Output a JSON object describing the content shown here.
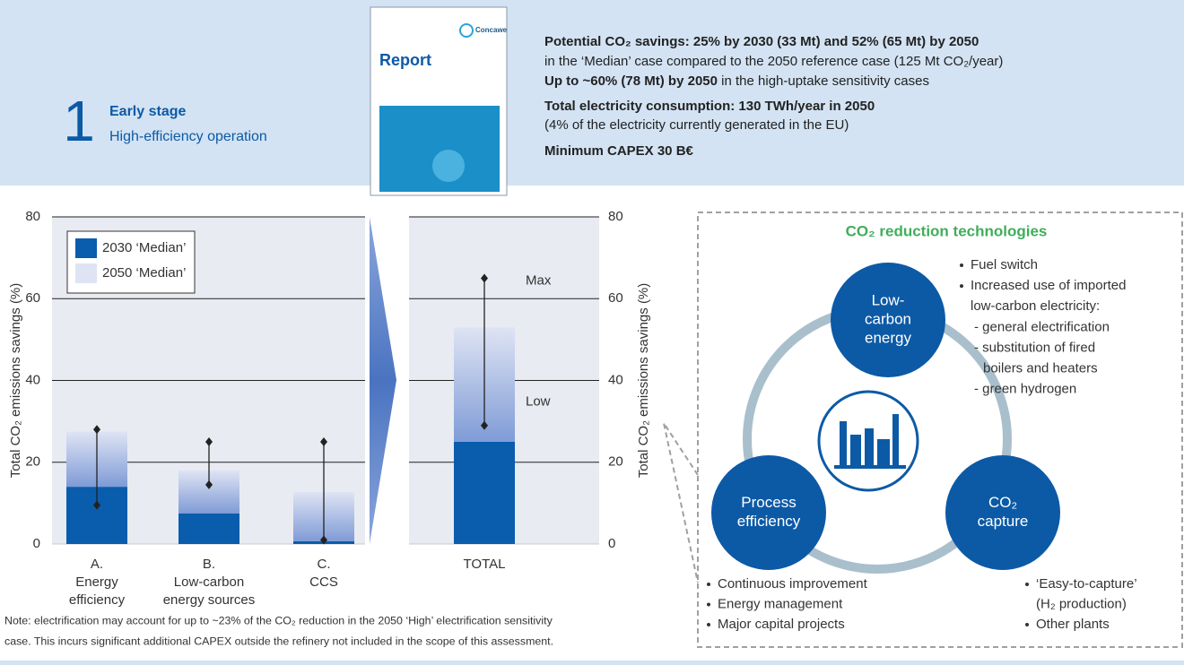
{
  "header": {
    "number": "1",
    "stage": "Early stage",
    "title": "High-efficiency operation",
    "report_brand": "Concawe",
    "report_title": "Report",
    "lines": [
      [
        {
          "text": "Potential CO₂ savings: 25% by 2030 (33 Mt) and 52% (65 Mt) by 2050",
          "bold": true
        }
      ],
      [
        {
          "text": "in the ‘Median’ case compared to the 2050 reference case (125 Mt CO₂/year)",
          "bold": false
        }
      ],
      [
        {
          "text": "Up to ~60% (78 Mt) by 2050",
          "bold": true
        },
        {
          "text": " in the high-uptake sensitivity cases",
          "bold": false
        }
      ],
      [
        {
          "text": "Total electricity consumption: 130 TWh/year in 2050",
          "bold": true
        }
      ],
      [
        {
          "text": "(4% of the electricity currently generated in the EU)",
          "bold": false
        }
      ],
      [
        {
          "text": "Minimum CAPEX 30 B€",
          "bold": true
        }
      ]
    ]
  },
  "chart_data": [
    {
      "type": "bar",
      "stacked": true,
      "categories": [
        [
          "A.",
          "Energy",
          "efficiency"
        ],
        [
          "B.",
          "Low-carbon",
          "energy sources"
        ],
        [
          "C.",
          "CCS"
        ]
      ],
      "series": [
        {
          "name": "2030 ‘Median’",
          "color": "#0a5cad",
          "values": [
            14,
            7.5,
            0.7
          ]
        },
        {
          "name": "2050 ‘Median’",
          "color": "#dfe4f4",
          "values": [
            13.5,
            10.5,
            12
          ]
        }
      ],
      "range": {
        "low": [
          9.5,
          14.5,
          1
        ],
        "high": [
          28,
          25,
          25
        ]
      },
      "ylabel": "Total CO₂ emissions savings (%)",
      "ylim": [
        0,
        80
      ],
      "yticks": [
        0,
        20,
        40,
        60,
        80
      ],
      "grid": true,
      "legend": "upper left"
    },
    {
      "type": "bar",
      "stacked": true,
      "categories": [
        [
          "TOTAL"
        ]
      ],
      "series": [
        {
          "color": "#0a5cad",
          "values": [
            25
          ]
        },
        {
          "color": "#dfe4f4",
          "values": [
            28
          ]
        }
      ],
      "range": {
        "low": [
          29
        ],
        "high": [
          65
        ]
      },
      "range_labels": {
        "low": "Low",
        "high": "Max"
      },
      "ylabel": "Total CO₂ emissions savings (%)",
      "ylim": [
        0,
        80
      ],
      "yticks": [
        0,
        20,
        40,
        60,
        80
      ],
      "grid": true
    }
  ],
  "diagram": {
    "title": "CO₂ reduction technologies",
    "nodes": [
      {
        "label": [
          "Low-",
          "carbon",
          "energy"
        ]
      },
      {
        "label": [
          "Process",
          "efficiency"
        ]
      },
      {
        "label": [
          "CO₂",
          "capture"
        ]
      }
    ],
    "bullets": [
      [
        [
          "Fuel switch"
        ],
        [
          "Increased use of imported",
          "low-carbon electricity:",
          "- general electrification",
          "- substitution of fired",
          "boilers and heaters",
          "- green hydrogen"
        ]
      ],
      [
        [
          "Continuous improvement"
        ],
        [
          "Energy management"
        ],
        [
          "Major capital projects"
        ]
      ],
      [
        [
          "‘Easy-to-capture’",
          "(H₂ production)"
        ],
        [
          "Other plants"
        ]
      ]
    ]
  },
  "note": [
    "Note: electrification may account for up to ~23% of the CO₂ reduction in the 2050 ‘High’ electrification sensitivity",
    "case. This incurs significant additional CAPEX outside the refinery not included in the scope of this assessment."
  ]
}
